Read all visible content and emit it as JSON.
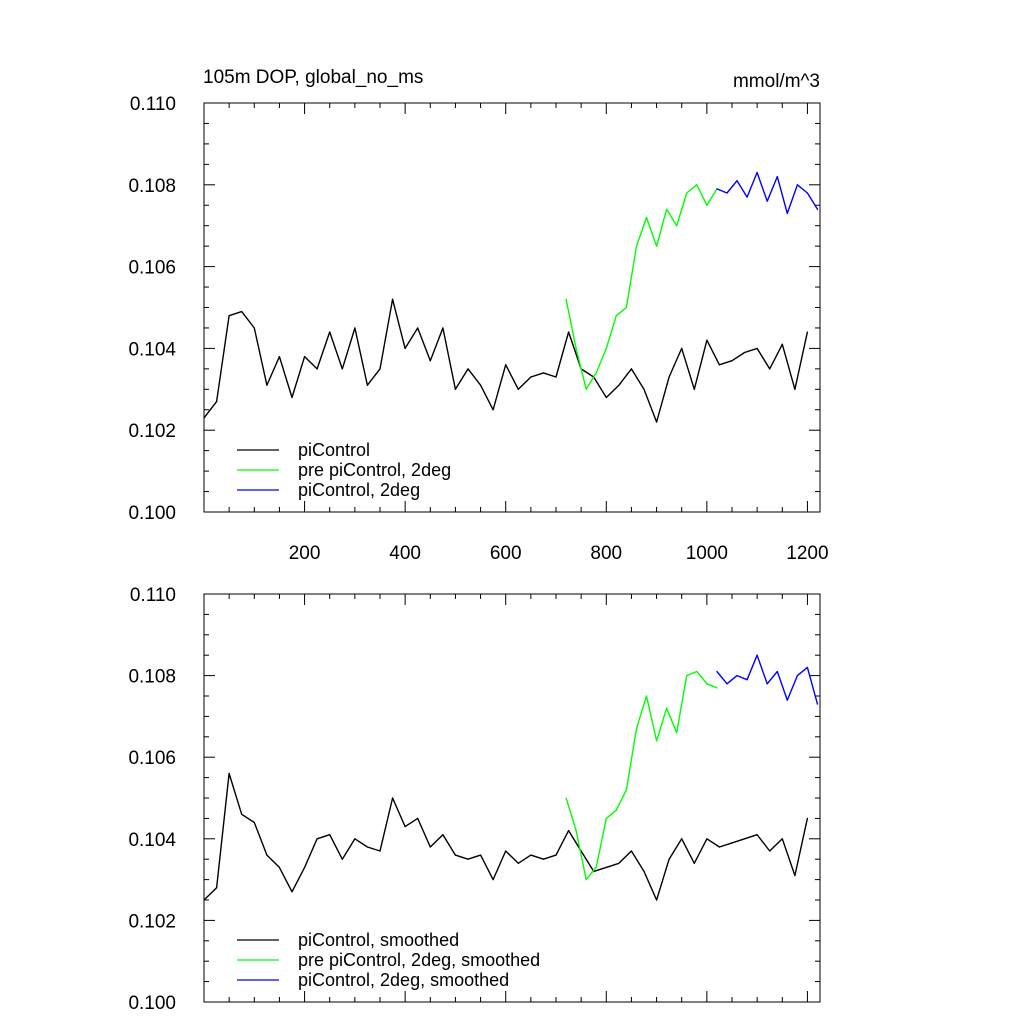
{
  "chart_data": [
    {
      "type": "line",
      "title": "105m DOP, global_no_ms",
      "units": "mmol/m^3",
      "xlabel": "",
      "ylabel": "",
      "xlim": [
        0,
        1225
      ],
      "ylim": [
        0.1,
        0.11
      ],
      "x_ticks": [
        200,
        400,
        600,
        800,
        1000,
        1200
      ],
      "x_tick_labels": [
        "200",
        "400",
        "600",
        "800",
        "1000",
        "1200"
      ],
      "y_ticks": [
        0.1,
        0.102,
        0.104,
        0.106,
        0.108,
        0.11
      ],
      "y_tick_labels": [
        "0.100",
        "0.102",
        "0.104",
        "0.106",
        "0.108",
        "0.110"
      ],
      "grid": false,
      "legend_position": "bottom-left",
      "series": [
        {
          "name": "piControl",
          "color": "#000000",
          "x": [
            0,
            25,
            50,
            75,
            100,
            125,
            150,
            175,
            200,
            225,
            250,
            275,
            300,
            325,
            350,
            375,
            400,
            425,
            450,
            475,
            500,
            525,
            550,
            575,
            600,
            625,
            650,
            675,
            700,
            725,
            750,
            775,
            800,
            825,
            850,
            875,
            900,
            925,
            950,
            975,
            1000,
            1025,
            1050,
            1075,
            1100,
            1125,
            1150,
            1175,
            1200
          ],
          "y": [
            0.1023,
            0.1027,
            0.1048,
            0.1049,
            0.1045,
            0.1031,
            0.1038,
            0.1028,
            0.1038,
            0.1035,
            0.1044,
            0.1035,
            0.1045,
            0.1031,
            0.1035,
            0.1052,
            0.104,
            0.1045,
            0.1037,
            0.1045,
            0.103,
            0.1035,
            0.1031,
            0.1025,
            0.1036,
            0.103,
            0.1033,
            0.1034,
            0.1033,
            0.1044,
            0.1035,
            0.1033,
            0.1028,
            0.1031,
            0.1035,
            0.103,
            0.1022,
            0.1033,
            0.104,
            0.103,
            0.1042,
            0.1036,
            0.1037,
            0.1039,
            0.104,
            0.1035,
            0.1041,
            0.103,
            0.1044
          ]
        },
        {
          "name": "pre piControl, 2deg",
          "color": "#00ff00",
          "x": [
            720,
            740,
            760,
            780,
            800,
            820,
            840,
            860,
            880,
            900,
            920,
            940,
            960,
            980,
            1000,
            1020
          ],
          "y": [
            0.1052,
            0.104,
            0.103,
            0.1034,
            0.104,
            0.1048,
            0.105,
            0.1065,
            0.1072,
            0.1065,
            0.1074,
            0.107,
            0.1078,
            0.108,
            0.1075,
            0.1079
          ]
        },
        {
          "name": "piControl, 2deg",
          "color": "#0000ff",
          "x": [
            1020,
            1040,
            1060,
            1080,
            1100,
            1120,
            1140,
            1160,
            1180,
            1200,
            1220
          ],
          "y": [
            0.1079,
            0.1078,
            0.1081,
            0.1077,
            0.1083,
            0.1076,
            0.1082,
            0.1073,
            0.108,
            0.1078,
            0.1074
          ]
        }
      ]
    },
    {
      "type": "line",
      "title": "",
      "xlabel": "",
      "ylabel": "",
      "xlim": [
        0,
        1225
      ],
      "ylim": [
        0.1,
        0.11
      ],
      "x_ticks": [
        200,
        400,
        600,
        800,
        1000,
        1200
      ],
      "x_tick_labels": [],
      "y_ticks": [
        0.1,
        0.102,
        0.104,
        0.106,
        0.108,
        0.11
      ],
      "y_tick_labels": [
        "0.100",
        "0.102",
        "0.104",
        "0.106",
        "0.108",
        "0.110"
      ],
      "grid": false,
      "legend_position": "bottom-left",
      "series": [
        {
          "name": "piControl, smoothed",
          "color": "#000000",
          "x": [
            0,
            25,
            50,
            75,
            100,
            125,
            150,
            175,
            200,
            225,
            250,
            275,
            300,
            325,
            350,
            375,
            400,
            425,
            450,
            475,
            500,
            525,
            550,
            575,
            600,
            625,
            650,
            675,
            700,
            725,
            750,
            775,
            800,
            825,
            850,
            875,
            900,
            925,
            950,
            975,
            1000,
            1025,
            1050,
            1075,
            1100,
            1125,
            1150,
            1175,
            1200
          ],
          "y": [
            0.1025,
            0.1028,
            0.1056,
            0.1046,
            0.1044,
            0.1036,
            0.1033,
            0.1027,
            0.1033,
            0.104,
            0.1041,
            0.1035,
            0.104,
            0.1038,
            0.1037,
            0.105,
            0.1043,
            0.1045,
            0.1038,
            0.1041,
            0.1036,
            0.1035,
            0.1036,
            0.103,
            0.1037,
            0.1034,
            0.1036,
            0.1035,
            0.1036,
            0.1042,
            0.1037,
            0.1032,
            0.1033,
            0.1034,
            0.1037,
            0.1032,
            0.1025,
            0.1035,
            0.104,
            0.1034,
            0.104,
            0.1038,
            0.1039,
            0.104,
            0.1041,
            0.1037,
            0.104,
            0.1031,
            0.1045
          ]
        },
        {
          "name": "pre piControl, 2deg, smoothed",
          "color": "#00ff00",
          "x": [
            720,
            740,
            760,
            780,
            800,
            820,
            840,
            860,
            880,
            900,
            920,
            940,
            960,
            980,
            1000,
            1020
          ],
          "y": [
            0.105,
            0.1042,
            0.103,
            0.1033,
            0.1045,
            0.1047,
            0.1052,
            0.1067,
            0.1075,
            0.1064,
            0.1072,
            0.1066,
            0.108,
            0.1081,
            0.1078,
            0.1077
          ]
        },
        {
          "name": "piControl, 2deg, smoothed",
          "color": "#0000ff",
          "x": [
            1020,
            1040,
            1060,
            1080,
            1100,
            1120,
            1140,
            1160,
            1180,
            1200,
            1220
          ],
          "y": [
            0.1081,
            0.1078,
            0.108,
            0.1079,
            0.1085,
            0.1078,
            0.1081,
            0.1074,
            0.108,
            0.1082,
            0.1073
          ]
        }
      ]
    }
  ]
}
